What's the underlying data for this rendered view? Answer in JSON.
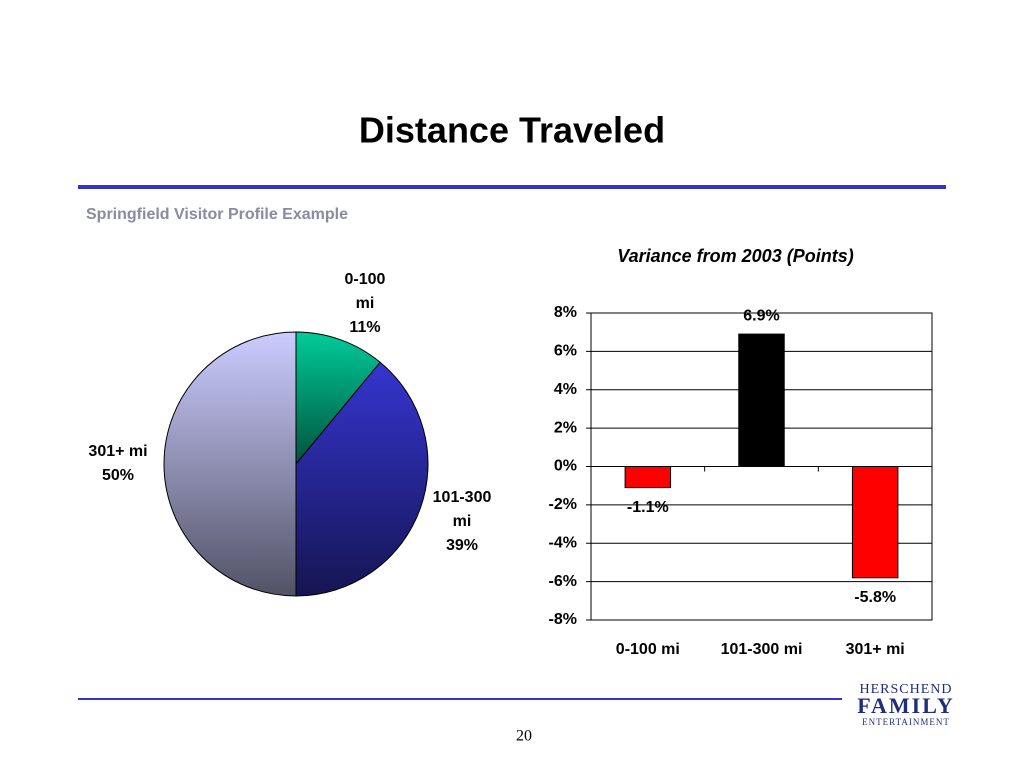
{
  "title": "Distance Traveled",
  "subtitle": "Springfield Visitor Profile Example",
  "page_number": "20",
  "logo": {
    "line1": "HERSCHEND",
    "line2": "FAMILY",
    "line3": "ENTERTAINMENT"
  },
  "chart_data": [
    {
      "type": "pie",
      "categories": [
        "0-100 mi",
        "101-300 mi",
        "301+ mi"
      ],
      "values": [
        11,
        39,
        50
      ],
      "value_labels": [
        "11%",
        "39%",
        "50%"
      ],
      "colors": [
        "#00cc99",
        "#3535d0",
        "#ccccff"
      ]
    },
    {
      "type": "bar",
      "title": "Variance from 2003 (Points)",
      "categories": [
        "0-100 mi",
        "101-300 mi",
        "301+ mi"
      ],
      "values": [
        -1.1,
        6.9,
        -5.8
      ],
      "value_labels": [
        "-1.1%",
        "6.9%",
        "-5.8%"
      ],
      "colors": [
        "#ff0000",
        "#000000",
        "#ff0000"
      ],
      "ylim": [
        -8,
        8
      ],
      "yticks": [
        {
          "value": -8,
          "label": "-8%"
        },
        {
          "value": -6,
          "label": "-6%"
        },
        {
          "value": -4,
          "label": "-4%"
        },
        {
          "value": -2,
          "label": "-2%"
        },
        {
          "value": 0,
          "label": "0%"
        },
        {
          "value": 2,
          "label": "2%"
        },
        {
          "value": 4,
          "label": "4%"
        },
        {
          "value": 6,
          "label": "6%"
        },
        {
          "value": 8,
          "label": "8%"
        }
      ],
      "grid": true
    }
  ]
}
